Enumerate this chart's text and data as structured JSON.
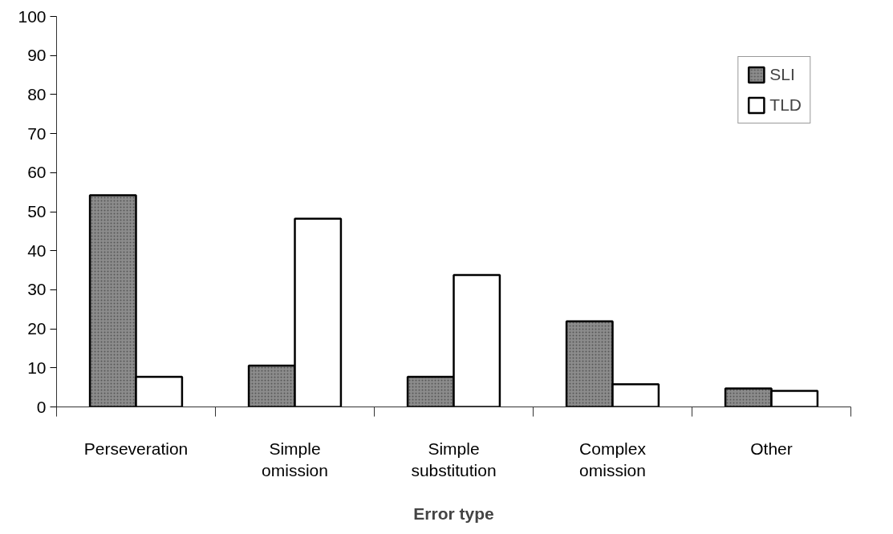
{
  "chart_data": {
    "type": "bar",
    "xlabel": "Error type",
    "categories": [
      "Perseveration",
      "Simple omission",
      "Simple substitution",
      "Complex omission",
      "Other"
    ],
    "series": [
      {
        "name": "SLI",
        "color": "#8c8c8c",
        "values": [
          54.2,
          10.6,
          7.7,
          21.9,
          4.7
        ]
      },
      {
        "name": "TLD",
        "color": "#ffffff",
        "values": [
          7.7,
          48.2,
          33.8,
          5.8,
          4.1
        ]
      }
    ],
    "ylim": [
      0,
      100
    ],
    "yticks": [
      0,
      10,
      20,
      30,
      40,
      50,
      60,
      70,
      80,
      90,
      100
    ],
    "grid": false,
    "legend": "top right"
  }
}
